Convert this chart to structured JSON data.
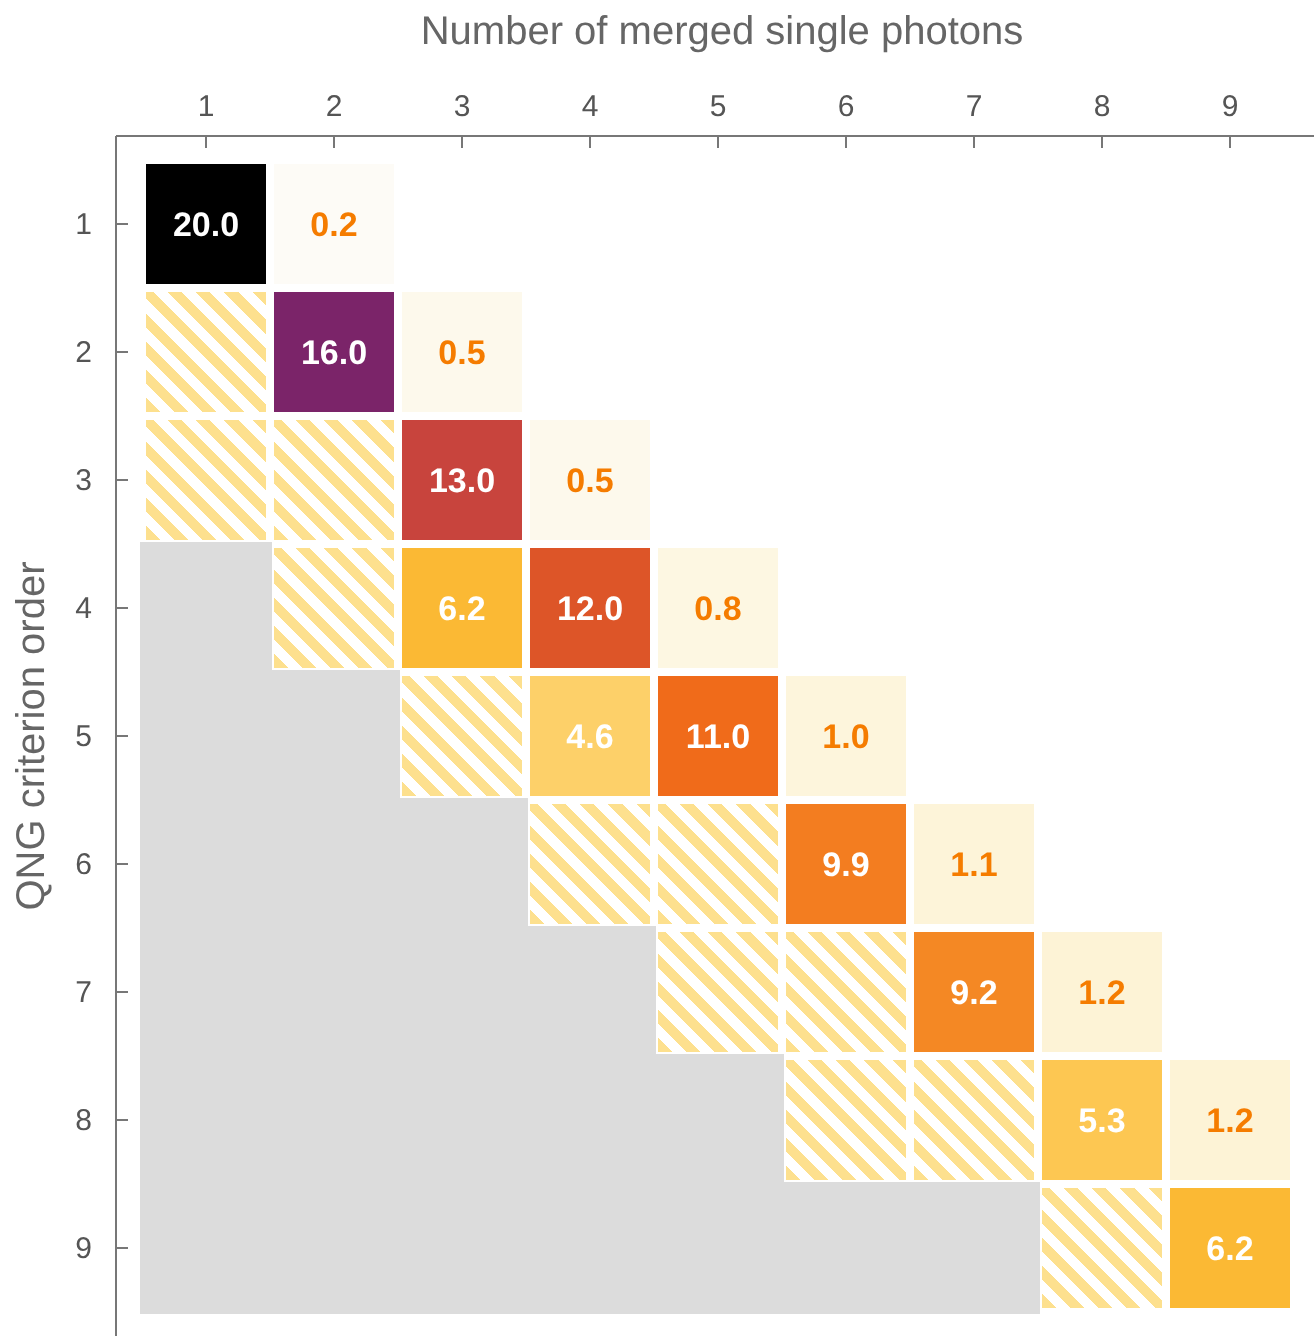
{
  "chart_data": {
    "type": "heatmap",
    "xlabel": "Number of merged single photons",
    "ylabel": "QNG criterion order",
    "categories": [
      "1",
      "2",
      "3",
      "4",
      "5",
      "6",
      "7",
      "8",
      "9"
    ],
    "y_categories": [
      "1",
      "2",
      "3",
      "4",
      "5",
      "6",
      "7",
      "8",
      "9"
    ],
    "cells": [
      [
        20.0,
        0.2,
        null,
        null,
        null,
        null,
        null,
        null,
        null
      ],
      [
        null,
        16.0,
        0.5,
        null,
        null,
        null,
        null,
        null,
        null
      ],
      [
        null,
        null,
        13.0,
        0.5,
        null,
        null,
        null,
        null,
        null
      ],
      [
        null,
        null,
        6.2,
        12.0,
        0.8,
        null,
        null,
        null,
        null
      ],
      [
        null,
        null,
        null,
        4.6,
        11.0,
        1.0,
        null,
        null,
        null
      ],
      [
        null,
        null,
        null,
        null,
        null,
        9.9,
        1.1,
        null,
        null
      ],
      [
        null,
        null,
        null,
        null,
        null,
        null,
        9.2,
        1.2,
        null
      ],
      [
        null,
        null,
        null,
        null,
        null,
        null,
        null,
        5.3,
        1.2
      ],
      [
        null,
        null,
        null,
        null,
        null,
        null,
        null,
        null,
        6.2
      ]
    ],
    "cell_labels": [
      [
        "20.0",
        "0.2",
        null,
        null,
        null,
        null,
        null,
        null,
        null
      ],
      [
        null,
        "16.0",
        "0.5",
        null,
        null,
        null,
        null,
        null,
        null
      ],
      [
        null,
        null,
        "13.0",
        "0.5",
        null,
        null,
        null,
        null,
        null
      ],
      [
        null,
        null,
        "6.2",
        "12.0",
        "0.8",
        null,
        null,
        null,
        null
      ],
      [
        null,
        null,
        null,
        "4.6",
        "11.0",
        "1.0",
        null,
        null,
        null
      ],
      [
        null,
        null,
        null,
        null,
        null,
        "9.9",
        "1.1",
        null,
        null
      ],
      [
        null,
        null,
        null,
        null,
        null,
        null,
        "9.2",
        "1.2",
        null
      ],
      [
        null,
        null,
        null,
        null,
        null,
        null,
        null,
        "5.3",
        "1.2"
      ],
      [
        null,
        null,
        null,
        null,
        null,
        null,
        null,
        null,
        "6.2"
      ]
    ]
  }
}
